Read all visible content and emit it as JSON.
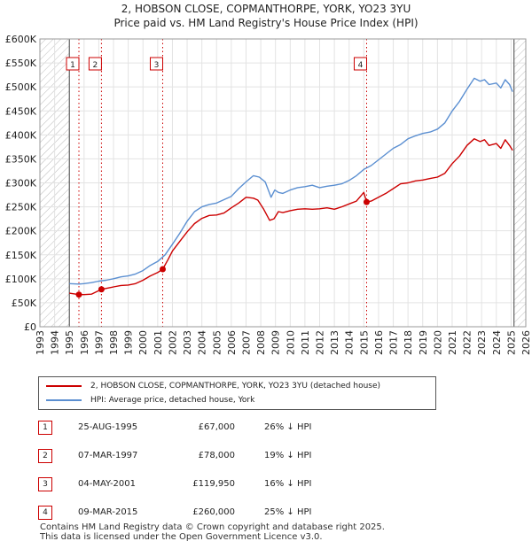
{
  "title_line1": "2, HOBSON CLOSE, COPMANTHORPE, YORK, YO23 3YU",
  "title_line2": "Price paid vs. HM Land Registry's House Price Index (HPI)",
  "legend": {
    "property_label": "2, HOBSON CLOSE, COPMANTHORPE, YORK, YO23 3YU (detached house)",
    "hpi_label": "HPI: Average price, detached house, York"
  },
  "colors": {
    "property": "#cc0000",
    "hpi": "#5b8fd1",
    "hatch": "#bbbbbb",
    "marker_box": "#cc0000"
  },
  "chart_data": {
    "type": "line",
    "title": "2, HOBSON CLOSE, COPMANTHORPE, YORK, YO23 3YU",
    "xlabel": "",
    "ylabel": "",
    "xlim": [
      1993,
      2026
    ],
    "ylim": [
      0,
      600000
    ],
    "x_ticks": [
      "1993",
      "1994",
      "1995",
      "1996",
      "1997",
      "1998",
      "1999",
      "2000",
      "2001",
      "2002",
      "2003",
      "2004",
      "2005",
      "2006",
      "2007",
      "2008",
      "2009",
      "2010",
      "2011",
      "2012",
      "2013",
      "2014",
      "2015",
      "2016",
      "2017",
      "2018",
      "2019",
      "2020",
      "2021",
      "2022",
      "2023",
      "2024",
      "2025",
      "2026"
    ],
    "y_ticks": [
      {
        "value": 0,
        "label": "£0"
      },
      {
        "value": 50000,
        "label": "£50K"
      },
      {
        "value": 100000,
        "label": "£100K"
      },
      {
        "value": 150000,
        "label": "£150K"
      },
      {
        "value": 200000,
        "label": "£200K"
      },
      {
        "value": 250000,
        "label": "£250K"
      },
      {
        "value": 300000,
        "label": "£300K"
      },
      {
        "value": 350000,
        "label": "£350K"
      },
      {
        "value": 400000,
        "label": "£400K"
      },
      {
        "value": 450000,
        "label": "£450K"
      },
      {
        "value": 500000,
        "label": "£500K"
      },
      {
        "value": 550000,
        "label": "£550K"
      },
      {
        "value": 600000,
        "label": "£600K"
      }
    ],
    "hatched_ranges": [
      [
        1993,
        1995.0
      ],
      [
        2025.2,
        2026
      ]
    ],
    "series": [
      {
        "name": "2, HOBSON CLOSE, COPMANTHORPE, YORK, YO23 3YU (detached house)",
        "x": [
          1995.0,
          1995.65,
          1996.0,
          1996.5,
          1997.18,
          1997.5,
          1998.0,
          1998.5,
          1999.0,
          1999.5,
          2000.0,
          2000.5,
          2001.0,
          2001.34,
          2001.7,
          2002.0,
          2002.5,
          2003.0,
          2003.5,
          2004.0,
          2004.5,
          2005.0,
          2005.5,
          2006.0,
          2006.5,
          2007.0,
          2007.5,
          2007.8,
          2008.2,
          2008.6,
          2008.9,
          2009.2,
          2009.5,
          2010.0,
          2010.5,
          2011.0,
          2011.5,
          2012.0,
          2012.5,
          2013.0,
          2013.5,
          2014.0,
          2014.5,
          2015.0,
          2015.19,
          2015.5,
          2016.0,
          2016.5,
          2017.0,
          2017.5,
          2018.0,
          2018.5,
          2019.0,
          2019.5,
          2020.0,
          2020.5,
          2021.0,
          2021.5,
          2022.0,
          2022.5,
          2022.9,
          2023.2,
          2023.5,
          2024.0,
          2024.3,
          2024.6,
          2024.9,
          2025.1
        ],
        "values": [
          70000,
          67000,
          67000,
          68000,
          78000,
          80000,
          83000,
          86000,
          87000,
          90000,
          97000,
          106000,
          113000,
          119950,
          140000,
          158000,
          178000,
          198000,
          215000,
          226000,
          232000,
          233000,
          237000,
          248000,
          258000,
          270000,
          268000,
          264000,
          245000,
          222000,
          225000,
          240000,
          238000,
          242000,
          245000,
          246000,
          245000,
          246000,
          248000,
          245000,
          250000,
          256000,
          262000,
          280000,
          260000,
          262000,
          270000,
          278000,
          288000,
          298000,
          300000,
          304000,
          306000,
          309000,
          312000,
          320000,
          340000,
          356000,
          378000,
          392000,
          386000,
          390000,
          378000,
          382000,
          372000,
          390000,
          378000,
          368000
        ]
      },
      {
        "name": "HPI: Average price, detached house, York",
        "x": [
          1995.0,
          1995.65,
          1996.0,
          1996.5,
          1997.0,
          1997.5,
          1998.0,
          1998.5,
          1999.0,
          1999.5,
          2000.0,
          2000.5,
          2001.0,
          2001.5,
          2002.0,
          2002.5,
          2003.0,
          2003.5,
          2004.0,
          2004.5,
          2005.0,
          2005.5,
          2006.0,
          2006.5,
          2007.0,
          2007.5,
          2007.9,
          2008.3,
          2008.7,
          2008.95,
          2009.2,
          2009.5,
          2010.0,
          2010.5,
          2011.0,
          2011.5,
          2012.0,
          2012.5,
          2013.0,
          2013.5,
          2014.0,
          2014.5,
          2015.0,
          2015.5,
          2016.0,
          2016.5,
          2017.0,
          2017.5,
          2018.0,
          2018.5,
          2019.0,
          2019.5,
          2020.0,
          2020.5,
          2021.0,
          2021.5,
          2022.0,
          2022.5,
          2022.9,
          2023.2,
          2023.5,
          2024.0,
          2024.3,
          2024.6,
          2024.9,
          2025.1
        ],
        "values": [
          90000,
          89000,
          90000,
          92000,
          95000,
          97000,
          100000,
          104000,
          106000,
          110000,
          117000,
          128000,
          136000,
          150000,
          172000,
          195000,
          220000,
          240000,
          250000,
          255000,
          258000,
          265000,
          272000,
          288000,
          302000,
          315000,
          312000,
          302000,
          270000,
          285000,
          280000,
          278000,
          285000,
          290000,
          292000,
          295000,
          290000,
          293000,
          295000,
          298000,
          305000,
          315000,
          328000,
          336000,
          348000,
          360000,
          372000,
          380000,
          392000,
          398000,
          403000,
          406000,
          412000,
          425000,
          450000,
          470000,
          495000,
          518000,
          512000,
          515000,
          505000,
          508000,
          498000,
          515000,
          505000,
          490000
        ]
      }
    ],
    "sales": [
      {
        "marker": "1",
        "x": 1995.65,
        "value": 67000,
        "date": "25-AUG-1995",
        "price": "£67,000",
        "hpi_diff": "26% ↓ HPI"
      },
      {
        "marker": "2",
        "x": 1997.18,
        "value": 78000,
        "date": "07-MAR-1997",
        "price": "£78,000",
        "hpi_diff": "19% ↓ HPI"
      },
      {
        "marker": "3",
        "x": 2001.34,
        "value": 119950,
        "date": "04-MAY-2001",
        "price": "£119,950",
        "hpi_diff": "16% ↓ HPI"
      },
      {
        "marker": "4",
        "x": 2015.19,
        "value": 260000,
        "date": "09-MAR-2015",
        "price": "£260,000",
        "hpi_diff": "25% ↓ HPI"
      }
    ],
    "grid": true
  },
  "footer_line1": "Contains HM Land Registry data © Crown copyright and database right 2025.",
  "footer_line2": "This data is licensed under the Open Government Licence v3.0."
}
